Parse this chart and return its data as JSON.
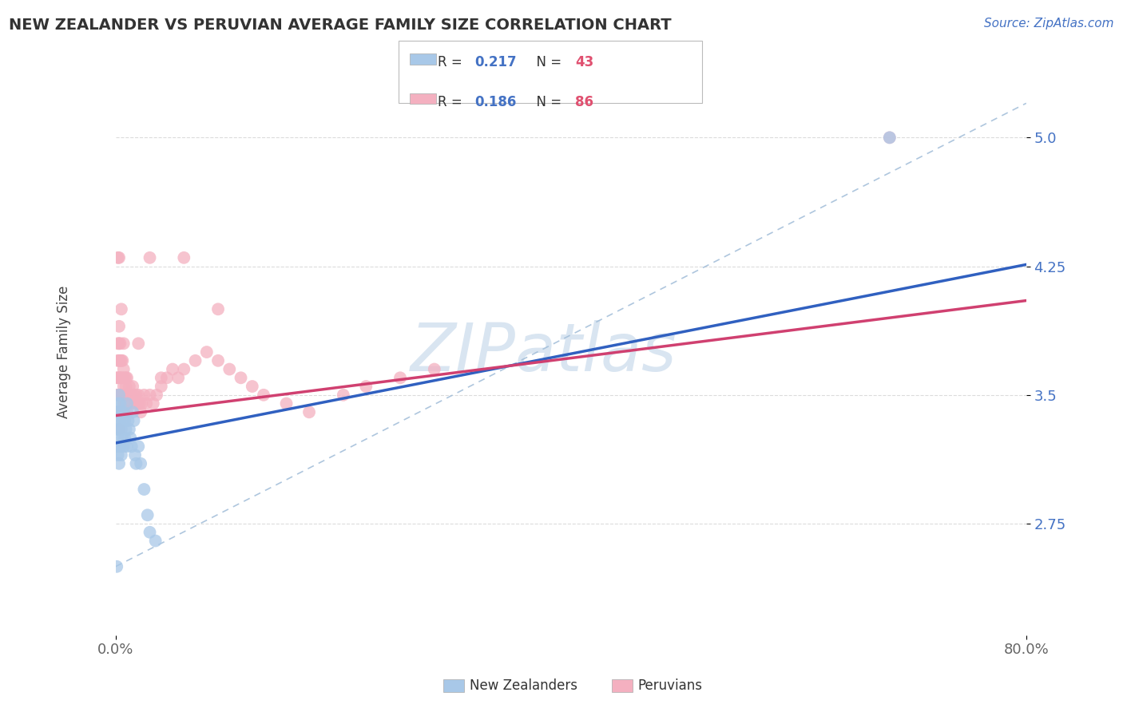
{
  "title": "NEW ZEALANDER VS PERUVIAN AVERAGE FAMILY SIZE CORRELATION CHART",
  "source_text": "Source: ZipAtlas.com",
  "ylabel": "Average Family Size",
  "xlim": [
    0.0,
    0.8
  ],
  "ylim": [
    2.1,
    5.4
  ],
  "ytick_values": [
    2.75,
    3.5,
    4.25,
    5.0
  ],
  "nz_color": "#a8c8e8",
  "pe_color": "#f4b0c0",
  "nz_line_color": "#3060c0",
  "pe_line_color": "#d04070",
  "ref_line_color": "#a0bcd8",
  "watermark": "ZIPatlas",
  "watermark_color": "#c0d4e8",
  "background_color": "#ffffff",
  "grid_color": "#cccccc",
  "nz_R": "0.217",
  "nz_N": "43",
  "pe_R": "0.186",
  "pe_N": "86",
  "accent_color": "#4472c4",
  "red_accent": "#e05070",
  "nz_scatter_x": [
    0.001,
    0.001,
    0.001,
    0.002,
    0.002,
    0.002,
    0.002,
    0.003,
    0.003,
    0.003,
    0.003,
    0.003,
    0.004,
    0.004,
    0.004,
    0.005,
    0.005,
    0.005,
    0.006,
    0.006,
    0.007,
    0.007,
    0.008,
    0.008,
    0.009,
    0.01,
    0.01,
    0.011,
    0.012,
    0.013,
    0.014,
    0.015,
    0.016,
    0.017,
    0.018,
    0.02,
    0.022,
    0.025,
    0.028,
    0.03,
    0.035,
    0.001,
    0.68
  ],
  "nz_scatter_y": [
    3.4,
    3.3,
    3.2,
    3.45,
    3.35,
    3.25,
    3.15,
    3.5,
    3.4,
    3.3,
    3.2,
    3.1,
    3.45,
    3.35,
    3.2,
    3.4,
    3.3,
    3.15,
    3.35,
    3.25,
    3.4,
    3.2,
    3.35,
    3.25,
    3.3,
    3.45,
    3.2,
    3.35,
    3.3,
    3.25,
    3.2,
    3.4,
    3.35,
    3.15,
    3.1,
    3.2,
    3.1,
    2.95,
    2.8,
    2.7,
    2.65,
    2.5,
    5.0
  ],
  "pe_scatter_x": [
    0.001,
    0.001,
    0.001,
    0.002,
    0.002,
    0.002,
    0.002,
    0.002,
    0.003,
    0.003,
    0.003,
    0.003,
    0.003,
    0.003,
    0.003,
    0.004,
    0.004,
    0.004,
    0.004,
    0.004,
    0.005,
    0.005,
    0.005,
    0.005,
    0.006,
    0.006,
    0.006,
    0.006,
    0.007,
    0.007,
    0.007,
    0.008,
    0.008,
    0.008,
    0.009,
    0.009,
    0.01,
    0.01,
    0.01,
    0.011,
    0.012,
    0.013,
    0.014,
    0.015,
    0.016,
    0.017,
    0.018,
    0.019,
    0.02,
    0.021,
    0.022,
    0.023,
    0.025,
    0.027,
    0.03,
    0.033,
    0.036,
    0.04,
    0.045,
    0.05,
    0.055,
    0.06,
    0.07,
    0.08,
    0.09,
    0.1,
    0.11,
    0.12,
    0.13,
    0.15,
    0.17,
    0.2,
    0.22,
    0.25,
    0.28,
    0.03,
    0.06,
    0.09,
    0.02,
    0.04,
    0.002,
    0.003,
    0.005,
    0.007,
    0.009,
    0.68
  ],
  "pe_scatter_y": [
    3.5,
    3.6,
    3.4,
    3.7,
    3.8,
    3.6,
    3.5,
    3.4,
    3.8,
    3.9,
    3.7,
    3.6,
    3.5,
    3.4,
    3.3,
    3.8,
    3.7,
    3.6,
    3.5,
    3.4,
    3.7,
    3.6,
    3.5,
    3.4,
    3.7,
    3.6,
    3.5,
    3.4,
    3.65,
    3.55,
    3.45,
    3.6,
    3.5,
    3.4,
    3.55,
    3.45,
    3.6,
    3.5,
    3.4,
    3.5,
    3.55,
    3.5,
    3.45,
    3.55,
    3.5,
    3.45,
    3.5,
    3.45,
    3.5,
    3.45,
    3.4,
    3.45,
    3.5,
    3.45,
    3.5,
    3.45,
    3.5,
    3.55,
    3.6,
    3.65,
    3.6,
    3.65,
    3.7,
    3.75,
    3.7,
    3.65,
    3.6,
    3.55,
    3.5,
    3.45,
    3.4,
    3.5,
    3.55,
    3.6,
    3.65,
    4.3,
    4.3,
    4.0,
    3.8,
    3.6,
    4.3,
    4.3,
    4.0,
    3.8,
    3.6,
    5.0
  ],
  "nz_line_x0": 0.0,
  "nz_line_y0": 3.22,
  "nz_line_x1": 0.2,
  "nz_line_y1": 3.48,
  "pe_line_x0": 0.0,
  "pe_line_y0": 3.38,
  "pe_line_x1": 0.8,
  "pe_line_y1": 4.05,
  "ref_line_x0": 0.0,
  "ref_line_y0": 2.5,
  "ref_line_x1": 0.8,
  "ref_line_y1": 5.2
}
